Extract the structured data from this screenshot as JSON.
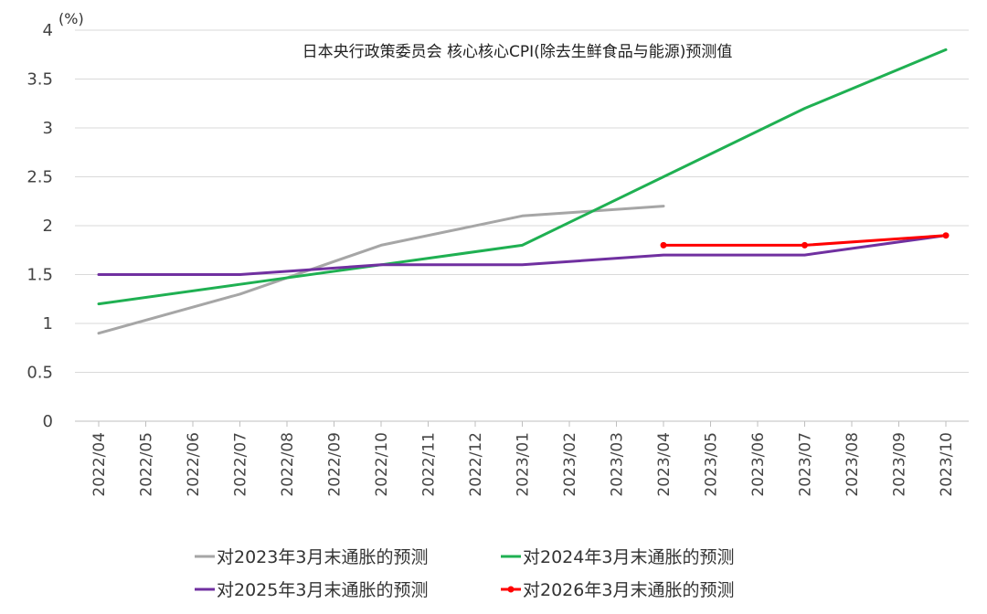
{
  "chart_data": {
    "type": "line",
    "title": "日本央行政策委员会  核心核心CPI(除去生鲜食品与能源)预测值",
    "unit_label": "(%)",
    "xlabel": "",
    "ylabel": "",
    "ylim": [
      0,
      4
    ],
    "yticks": [
      0,
      0.5,
      1,
      1.5,
      2,
      2.5,
      3,
      3.5,
      4
    ],
    "ytick_labels": [
      "0",
      "0.5",
      "1",
      "1.5",
      "2",
      "2.5",
      "3",
      "3.5",
      "4"
    ],
    "grid": true,
    "legend_position": "bottom",
    "categories": [
      "2022/04",
      "2022/05",
      "2022/06",
      "2022/07",
      "2022/08",
      "2022/09",
      "2022/10",
      "2022/11",
      "2022/12",
      "2023/01",
      "2023/02",
      "2023/03",
      "2023/04",
      "2023/05",
      "2023/06",
      "2023/07",
      "2023/08",
      "2023/09",
      "2023/10"
    ],
    "series": [
      {
        "name": "对2023年3月末通胀的预测",
        "color": "#a6a6a6",
        "markers": false,
        "values": [
          0.9,
          null,
          null,
          1.3,
          null,
          null,
          1.8,
          null,
          null,
          2.1,
          null,
          null,
          2.2,
          null,
          null,
          null,
          null,
          null,
          null
        ]
      },
      {
        "name": "对2024年3月末通胀的预测",
        "color": "#1fb052",
        "markers": false,
        "values": [
          1.2,
          null,
          null,
          1.4,
          null,
          null,
          1.6,
          null,
          null,
          1.8,
          null,
          null,
          2.5,
          null,
          null,
          3.2,
          null,
          null,
          3.8
        ]
      },
      {
        "name": "对2025年3月末通胀的预测",
        "color": "#7030a0",
        "markers": false,
        "values": [
          1.5,
          null,
          null,
          1.5,
          null,
          null,
          1.6,
          null,
          null,
          1.6,
          null,
          null,
          1.7,
          null,
          null,
          1.7,
          null,
          null,
          1.9
        ]
      },
      {
        "name": "对2026年3月末通胀的预测",
        "color": "#ff0000",
        "markers": true,
        "values": [
          null,
          null,
          null,
          null,
          null,
          null,
          null,
          null,
          null,
          null,
          null,
          null,
          1.8,
          null,
          null,
          1.8,
          null,
          null,
          1.9
        ]
      }
    ]
  }
}
